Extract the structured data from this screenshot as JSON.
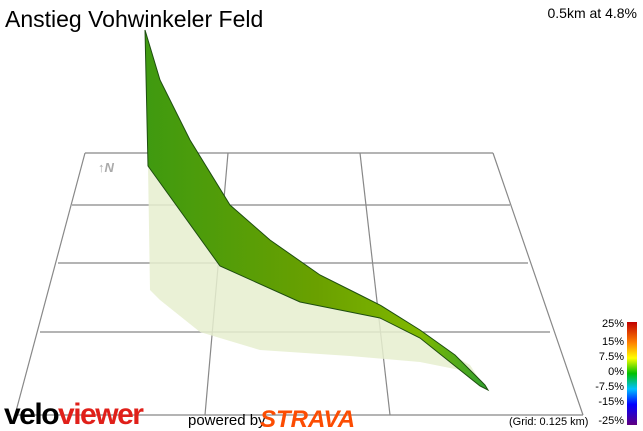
{
  "header": {
    "title": "Anstieg Vohwinkeler Feld",
    "summary": "0.5km at 4.8%"
  },
  "compass": "↑N",
  "legend": {
    "labels": [
      "25%",
      "15%",
      "7.5%",
      "0%",
      "-7.5%",
      "-15%",
      "-25%"
    ]
  },
  "grid_note": "(Grid: 0.125 km)",
  "footer": {
    "brand_a": "velo",
    "brand_b": "viewer",
    "powered_by": "powered by",
    "strava": "STRAVA"
  }
}
